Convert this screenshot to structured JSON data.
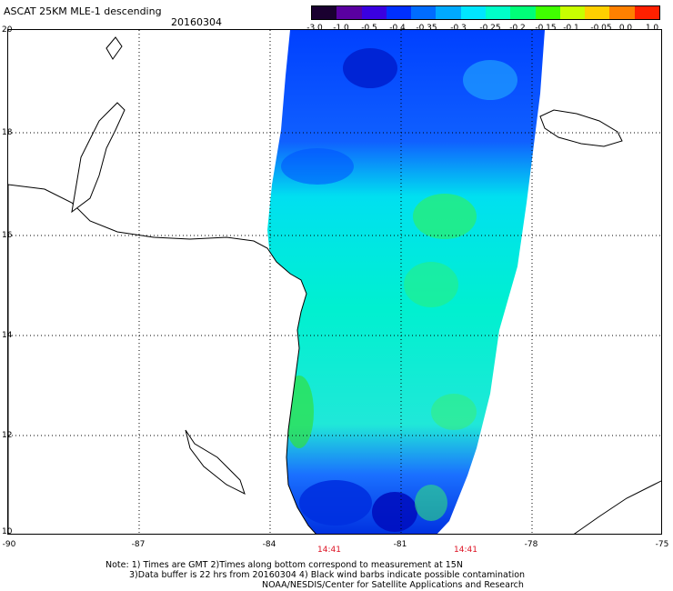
{
  "header": {
    "title": "ASCAT 25KM MLE-1 descending",
    "date": "20160304"
  },
  "colorbar": {
    "labels": [
      "-3.0",
      "-1.0",
      "-0.5",
      "-0.4",
      "-0.35",
      "-0.3",
      "-0.25",
      "-0.2",
      "-0.15",
      "-0.1",
      "-0.05",
      "0.0",
      "1.0"
    ],
    "colors": [
      "#1a0030",
      "#5a00a0",
      "#3a00e0",
      "#0030ff",
      "#006cff",
      "#00aaff",
      "#00e6ff",
      "#00ffc8",
      "#00ff78",
      "#40ff00",
      "#c8ff00",
      "#ffd000",
      "#ff8000",
      "#ff2000"
    ]
  },
  "map": {
    "lat_labels": [
      "20",
      "18",
      "16",
      "14",
      "12",
      "10"
    ],
    "lon_labels": [
      "-90",
      "-87",
      "-84",
      "-81",
      "-78",
      "-75"
    ],
    "time_labels": [
      "14:41",
      "14:41"
    ],
    "land_color": "#ffffff",
    "coast_color": "#000000",
    "grid_color": "#000000"
  },
  "notes": {
    "line1": "Note: 1) Times are GMT 2)Times along bottom correspond to measurement at 15N",
    "line2": "3)Data buffer is 22 hrs from 20160304 4) Black wind barbs indicate possible contamination",
    "line3": "NOAA/NESDIS/Center for Satellite Applications and Research"
  }
}
